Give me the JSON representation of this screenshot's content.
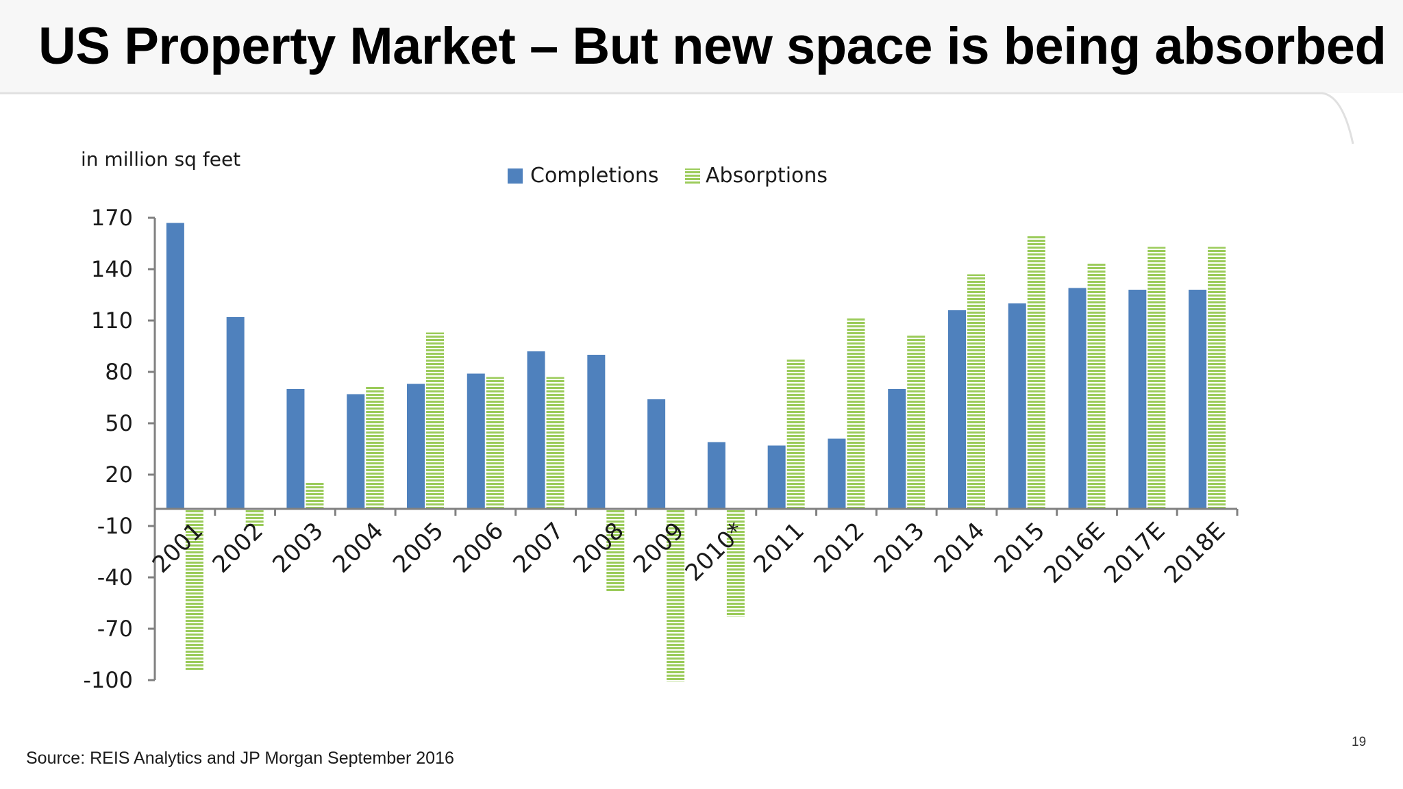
{
  "slide": {
    "title": "US Property Market – But new space is being absorbed",
    "source": "Source: REIS Analytics and JP Morgan September 2016",
    "page_number": "19"
  },
  "colors": {
    "completions": "#4f81bd",
    "absorptions": "#9bcb5a",
    "axis": "#808080"
  },
  "chart_data": {
    "type": "bar",
    "title": "",
    "ylabel": "in million sq feet",
    "xlabel": "",
    "ylim": [
      -100,
      170
    ],
    "yticks": [
      170,
      140,
      110,
      80,
      50,
      20,
      -10,
      -40,
      -70,
      -100
    ],
    "legend_position": "top-center",
    "grid": false,
    "categories": [
      "2001",
      "2002",
      "2003",
      "2004",
      "2005",
      "2006",
      "2007",
      "2008",
      "2009",
      "2010*",
      "2011",
      "2012",
      "2013",
      "2014",
      "2015",
      "2016E",
      "2017E",
      "2018E"
    ],
    "series": [
      {
        "name": "Completions",
        "pattern": "solid",
        "values": [
          167,
          112,
          70,
          67,
          73,
          79,
          92,
          90,
          64,
          39,
          37,
          41,
          70,
          116,
          120,
          129,
          128,
          128
        ]
      },
      {
        "name": "Absorptions",
        "pattern": "horizontal-stripes",
        "values": [
          -94,
          -10,
          16,
          72,
          103,
          77,
          77,
          -48,
          -101,
          -63,
          88,
          112,
          102,
          137,
          160,
          144,
          153,
          153
        ]
      }
    ]
  }
}
